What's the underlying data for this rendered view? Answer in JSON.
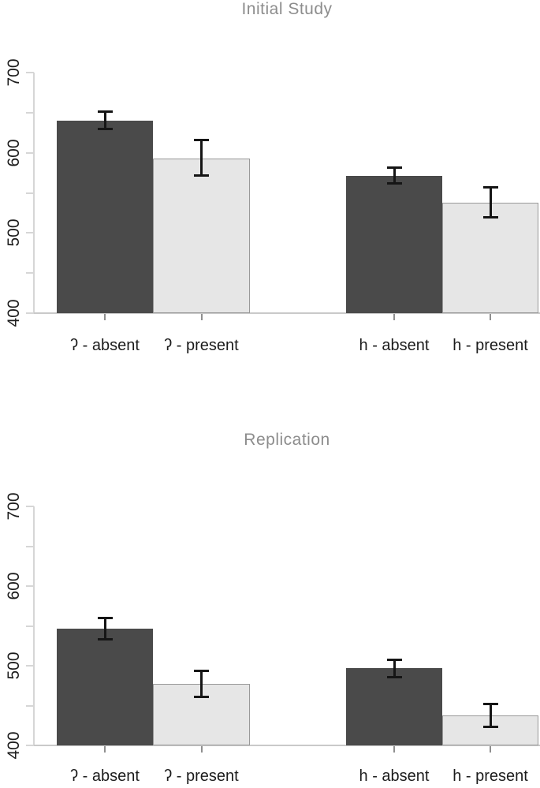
{
  "figure": {
    "background": "#ffffff",
    "panel_count": 2
  },
  "colors": {
    "dark_bar": "#4a4a4a",
    "light_bar": "#e6e6e6",
    "light_bar_border": "#999999",
    "error_bar": "#151515",
    "y_axis": "#d6d6d6",
    "x_tick": "#8f8f8f",
    "baseline": "#c9c9c9",
    "tick_label": "#1c1c1c",
    "title": "#8d8d8d"
  },
  "chart_data": [
    {
      "type": "bar",
      "title": "Initial Study",
      "ylim": [
        400,
        700
      ],
      "yticks": [
        400,
        500,
        600,
        700
      ],
      "yticks_minor": [
        450,
        550,
        650
      ],
      "grid": false,
      "legend": "none",
      "categories": [
        "ʔ - absent",
        "ʔ - present",
        "h - absent",
        "h - present"
      ],
      "bars": [
        {
          "label": "ʔ - absent",
          "value": 640,
          "ci": [
            629,
            652
          ],
          "shade": "dark"
        },
        {
          "label": "ʔ - present",
          "value": 593,
          "ci": [
            571,
            616
          ],
          "shade": "light"
        },
        {
          "label": "h - absent",
          "value": 571,
          "ci": [
            561,
            582
          ],
          "shade": "dark"
        },
        {
          "label": "h - present",
          "value": 538,
          "ci": [
            519,
            557
          ],
          "shade": "light"
        }
      ]
    },
    {
      "type": "bar",
      "title": "Replication",
      "ylim": [
        400,
        700
      ],
      "yticks": [
        400,
        500,
        600,
        700
      ],
      "yticks_minor": [
        450,
        550,
        650
      ],
      "grid": false,
      "legend": "none",
      "categories": [
        "ʔ - absent",
        "ʔ - present",
        "h - absent",
        "h - present"
      ],
      "bars": [
        {
          "label": "ʔ - absent",
          "value": 547,
          "ci": [
            533,
            560
          ],
          "shade": "dark"
        },
        {
          "label": "ʔ - present",
          "value": 477,
          "ci": [
            460,
            494
          ],
          "shade": "light"
        },
        {
          "label": "h - absent",
          "value": 497,
          "ci": [
            485,
            508
          ],
          "shade": "dark"
        },
        {
          "label": "h - present",
          "value": 438,
          "ci": [
            423,
            452
          ],
          "shade": "light"
        }
      ]
    }
  ]
}
